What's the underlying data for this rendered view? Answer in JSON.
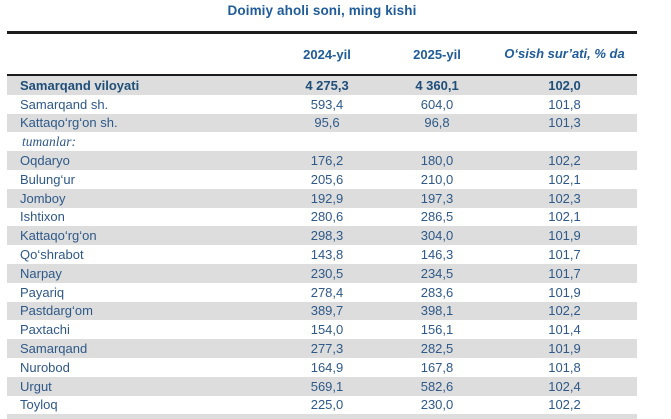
{
  "page": {
    "title": "Doimiy aholi soni, ming kishi"
  },
  "colors": {
    "accent_blue": "#1F5C99",
    "row_text_blue": "#2E5988",
    "total_bold_blue": "#1F4E79",
    "stripe_gray": "#DDDDDD",
    "rule_dark": "#1B1C1E"
  },
  "table": {
    "header": {
      "col_region": "",
      "col_2024": "2024-yil",
      "col_2025": "2025-yil",
      "col_growth": "O‘sish sur’ati, % da"
    },
    "rows": [
      {
        "name": "Samarqand viloyati",
        "y2024": "4 275,3",
        "y2025": "4 360,1",
        "growth": "102,0",
        "type": "total"
      },
      {
        "name": "Samarqand sh.",
        "y2024": "593,4",
        "y2025": "604,0",
        "growth": "101,8",
        "type": "city"
      },
      {
        "name": "Kattaqo‘rg‘on sh.",
        "y2024": "95,6",
        "y2025": "96,8",
        "growth": "101,3",
        "type": "city"
      },
      {
        "name": "tumanlar:",
        "y2024": "",
        "y2025": "",
        "growth": "",
        "type": "label"
      },
      {
        "name": "Oqdaryo",
        "y2024": "176,2",
        "y2025": "180,0",
        "growth": "102,2",
        "type": "district"
      },
      {
        "name": "Bulung‘ur",
        "y2024": "205,6",
        "y2025": "210,0",
        "growth": "102,1",
        "type": "district"
      },
      {
        "name": "Jomboy",
        "y2024": "192,9",
        "y2025": "197,3",
        "growth": "102,3",
        "type": "district"
      },
      {
        "name": "Ishtixon",
        "y2024": "280,6",
        "y2025": "286,5",
        "growth": "102,1",
        "type": "district"
      },
      {
        "name": "Kattaqo‘rg‘on",
        "y2024": "298,3",
        "y2025": "304,0",
        "growth": "101,9",
        "type": "district"
      },
      {
        "name": "Qo‘shrabot",
        "y2024": "143,8",
        "y2025": "146,3",
        "growth": "101,7",
        "type": "district"
      },
      {
        "name": "Narpay",
        "y2024": "230,5",
        "y2025": "234,5",
        "growth": "101,7",
        "type": "district"
      },
      {
        "name": "Payariq",
        "y2024": "278,4",
        "y2025": "283,6",
        "growth": "101,9",
        "type": "district"
      },
      {
        "name": "Pastdarg‘om",
        "y2024": "389,7",
        "y2025": "398,1",
        "growth": "102,2",
        "type": "district"
      },
      {
        "name": "Paxtachi",
        "y2024": "154,0",
        "y2025": "156,1",
        "growth": "101,4",
        "type": "district"
      },
      {
        "name": "Samarqand",
        "y2024": "277,3",
        "y2025": "282,5",
        "growth": "101,9",
        "type": "district"
      },
      {
        "name": "Nurobod",
        "y2024": "164,9",
        "y2025": "167,8",
        "growth": "101,8",
        "type": "district"
      },
      {
        "name": "Urgut",
        "y2024": "569,1",
        "y2025": "582,6",
        "growth": "102,4",
        "type": "district"
      },
      {
        "name": "Toyloq",
        "y2024": "225,0",
        "y2025": "230,0",
        "growth": "102,2",
        "type": "district"
      }
    ]
  },
  "chart_data": {
    "type": "table",
    "title": "Doimiy aholi soni, ming kishi",
    "columns": [
      "",
      "2024-yil",
      "2025-yil",
      "O‘sish sur’ati, % da"
    ],
    "rows": [
      [
        "Samarqand viloyati",
        "4 275,3",
        "4 360,1",
        "102,0"
      ],
      [
        "Samarqand sh.",
        "593,4",
        "604,0",
        "101,8"
      ],
      [
        "Kattaqo‘rg‘on sh.",
        "95,6",
        "96,8",
        "101,3"
      ],
      [
        "tumanlar:",
        "",
        "",
        ""
      ],
      [
        "Oqdaryo",
        "176,2",
        "180,0",
        "102,2"
      ],
      [
        "Bulung‘ur",
        "205,6",
        "210,0",
        "102,1"
      ],
      [
        "Jomboy",
        "192,9",
        "197,3",
        "102,3"
      ],
      [
        "Ishtixon",
        "280,6",
        "286,5",
        "102,1"
      ],
      [
        "Kattaqo‘rg‘on",
        "298,3",
        "304,0",
        "101,9"
      ],
      [
        "Qo‘shrabot",
        "143,8",
        "146,3",
        "101,7"
      ],
      [
        "Narpay",
        "230,5",
        "234,5",
        "101,7"
      ],
      [
        "Payariq",
        "278,4",
        "283,6",
        "101,9"
      ],
      [
        "Pastdarg‘om",
        "389,7",
        "398,1",
        "102,2"
      ],
      [
        "Paxtachi",
        "154,0",
        "156,1",
        "101,4"
      ],
      [
        "Samarqand",
        "277,3",
        "282,5",
        "101,9"
      ],
      [
        "Nurobod",
        "164,9",
        "167,8",
        "101,8"
      ],
      [
        "Urgut",
        "569,1",
        "582,6",
        "102,4"
      ],
      [
        "Toyloq",
        "225,0",
        "230,0",
        "102,2"
      ]
    ]
  }
}
